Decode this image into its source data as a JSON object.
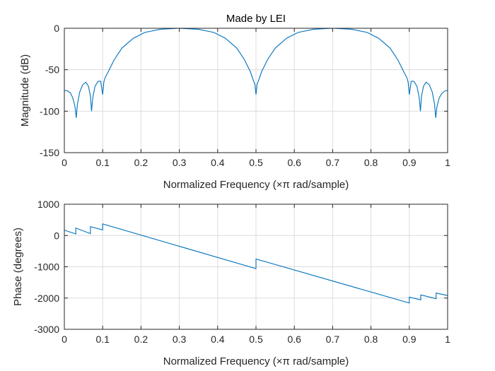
{
  "chart_data": [
    {
      "type": "line",
      "title": "Made by LEI",
      "xlabel": "Normalized Frequency  (×π rad/sample)",
      "ylabel": "Magnitude (dB)",
      "xlim": [
        0,
        1
      ],
      "ylim": [
        -150,
        0
      ],
      "grid": true,
      "xticks": [
        0,
        0.1,
        0.2,
        0.3,
        0.4,
        0.5,
        0.6,
        0.7,
        0.8,
        0.9,
        1
      ],
      "xtick_labels": [
        "0",
        "0.1",
        "0.2",
        "0.3",
        "0.4",
        "0.5",
        "0.6",
        "0.7",
        "0.8",
        "0.9",
        "1"
      ],
      "yticks": [
        0,
        -50,
        -100,
        -150
      ],
      "ytick_labels": [
        "0",
        "-50",
        "-100",
        "-150"
      ],
      "series": [
        {
          "name": "magnitude",
          "x": [
            0,
            0.008,
            0.016,
            0.022,
            0.028,
            0.031,
            0.034,
            0.04,
            0.048,
            0.056,
            0.063,
            0.068,
            0.071,
            0.074,
            0.08,
            0.088,
            0.095,
            0.1,
            0.103,
            0.106,
            0.115,
            0.13,
            0.15,
            0.18,
            0.21,
            0.25,
            0.3,
            0.35,
            0.39,
            0.42,
            0.45,
            0.47,
            0.485,
            0.494,
            0.497,
            0.5,
            0.503,
            0.506,
            0.515,
            0.53,
            0.55,
            0.58,
            0.61,
            0.65,
            0.7,
            0.75,
            0.79,
            0.82,
            0.85,
            0.87,
            0.885,
            0.894,
            0.897,
            0.9,
            0.905,
            0.912,
            0.92,
            0.926,
            0.929,
            0.932,
            0.937,
            0.944,
            0.952,
            0.96,
            0.966,
            0.969,
            0.972,
            0.978,
            0.986,
            0.993,
            1
          ],
          "y": [
            -75,
            -75.5,
            -78,
            -84,
            -95,
            -108,
            -92,
            -77,
            -68,
            -65,
            -70,
            -82,
            -100,
            -84,
            -70,
            -64,
            -64,
            -80,
            -65,
            -60,
            -52,
            -38,
            -24,
            -12,
            -5,
            -1.2,
            0,
            -1.2,
            -5,
            -12,
            -24,
            -38,
            -52,
            -64,
            -67,
            -80,
            -67,
            -64,
            -52,
            -38,
            -24,
            -12,
            -5,
            -1.2,
            0,
            -1.2,
            -5,
            -12,
            -24,
            -38,
            -52,
            -60,
            -65,
            -80,
            -64,
            -64,
            -70,
            -84,
            -100,
            -82,
            -70,
            -65,
            -68,
            -77,
            -92,
            -108,
            -95,
            -84,
            -78,
            -75.5,
            -75
          ]
        }
      ]
    },
    {
      "type": "line",
      "title": "",
      "xlabel": "Normalized Frequency  (×π rad/sample)",
      "ylabel": "Phase (degrees)",
      "xlim": [
        0,
        1
      ],
      "ylim": [
        -3000,
        1000
      ],
      "grid": true,
      "xticks": [
        0,
        0.1,
        0.2,
        0.3,
        0.4,
        0.5,
        0.6,
        0.7,
        0.8,
        0.9,
        1
      ],
      "xtick_labels": [
        "0",
        "0.1",
        "0.2",
        "0.3",
        "0.4",
        "0.5",
        "0.6",
        "0.7",
        "0.8",
        "0.9",
        "1"
      ],
      "yticks": [
        1000,
        0,
        -1000,
        -2000,
        -3000
      ],
      "ytick_labels": [
        "1000",
        "0",
        "-1000",
        "-2000",
        "-3000"
      ],
      "series": [
        {
          "name": "phase",
          "x": [
            0,
            0.03,
            0.03,
            0.068,
            0.068,
            0.1,
            0.1,
            0.5,
            0.5,
            0.9,
            0.9,
            0.93,
            0.93,
            0.97,
            0.97,
            1
          ],
          "y": [
            170,
            50,
            240,
            60,
            280,
            180,
            370,
            -1060,
            -750,
            -2160,
            -1970,
            -2060,
            -1900,
            -2020,
            -1840,
            -1920
          ]
        }
      ]
    }
  ],
  "colors": {
    "series": "#0072bd",
    "axes": "#262626",
    "grid": "#dcdcdc"
  }
}
